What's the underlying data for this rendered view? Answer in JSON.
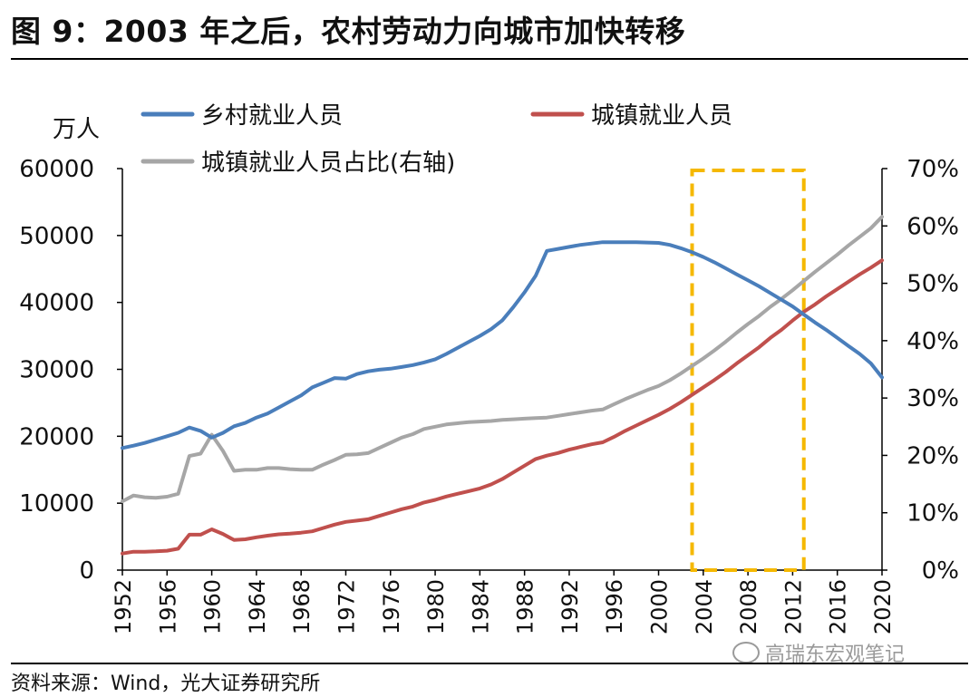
{
  "title": "图 9：2003 年之后，农村劳动力向城市加快转移",
  "source": "资料来源：Wind，光大证券研究所",
  "watermark": "高瑞东宏观笔记",
  "chart_data": {
    "type": "line",
    "ylabel": "万人",
    "ylim": [
      0,
      60000
    ],
    "y_ticks": [
      "0",
      "10000",
      "20000",
      "30000",
      "40000",
      "50000",
      "60000"
    ],
    "y2lim": [
      0,
      70
    ],
    "y2_ticks": [
      "0%",
      "10%",
      "20%",
      "30%",
      "40%",
      "50%",
      "60%",
      "70%"
    ],
    "xlim": [
      1952,
      2020
    ],
    "x_ticks": [
      "1952",
      "1956",
      "1960",
      "1964",
      "1968",
      "1972",
      "1976",
      "1980",
      "1984",
      "1988",
      "1992",
      "1996",
      "2000",
      "2004",
      "2008",
      "2012",
      "2016",
      "2020"
    ],
    "legend_position": "top",
    "highlight_box": {
      "x_from": 2003,
      "x_to": 2013,
      "color": "#F5B800"
    },
    "series": [
      {
        "name": "乡村就业人员",
        "axis": "left",
        "color": "#4A7EBB",
        "x": [
          1952,
          1953,
          1954,
          1955,
          1956,
          1957,
          1958,
          1959,
          1960,
          1961,
          1962,
          1963,
          1964,
          1965,
          1966,
          1967,
          1968,
          1969,
          1970,
          1971,
          1972,
          1973,
          1974,
          1975,
          1976,
          1977,
          1978,
          1979,
          1980,
          1981,
          1982,
          1983,
          1984,
          1985,
          1986,
          1987,
          1988,
          1989,
          1990,
          1991,
          1992,
          1993,
          1994,
          1995,
          1996,
          1997,
          1998,
          1999,
          2000,
          2001,
          2002,
          2003,
          2004,
          2005,
          2006,
          2007,
          2008,
          2009,
          2010,
          2011,
          2012,
          2013,
          2014,
          2015,
          2016,
          2017,
          2018,
          2019,
          2020
        ],
        "values": [
          18240,
          18590,
          19000,
          19500,
          20000,
          20520,
          21300,
          20800,
          19800,
          20500,
          21500,
          22000,
          22800,
          23400,
          24300,
          25200,
          26100,
          27300,
          28000,
          28700,
          28600,
          29300,
          29700,
          29950,
          30100,
          30350,
          30640,
          31030,
          31500,
          32300,
          33200,
          34100,
          35000,
          36000,
          37300,
          39300,
          41500,
          44000,
          47700,
          48000,
          48300,
          48600,
          48800,
          49000,
          49000,
          49000,
          49000,
          48950,
          48900,
          48600,
          48100,
          47500,
          46800,
          46000,
          45100,
          44200,
          43300,
          42400,
          41400,
          40400,
          39400,
          38200,
          37000,
          35900,
          34700,
          33500,
          32300,
          30900,
          28800
        ]
      },
      {
        "name": "城镇就业人员",
        "axis": "left",
        "color": "#C0504D",
        "x": [
          1952,
          1953,
          1954,
          1955,
          1956,
          1957,
          1958,
          1959,
          1960,
          1961,
          1962,
          1963,
          1964,
          1965,
          1966,
          1967,
          1968,
          1969,
          1970,
          1971,
          1972,
          1973,
          1974,
          1975,
          1976,
          1977,
          1978,
          1979,
          1980,
          1981,
          1982,
          1983,
          1984,
          1985,
          1986,
          1987,
          1988,
          1989,
          1990,
          1991,
          1992,
          1993,
          1994,
          1995,
          1996,
          1997,
          1998,
          1999,
          2000,
          2001,
          2002,
          2003,
          2004,
          2005,
          2006,
          2007,
          2008,
          2009,
          2010,
          2011,
          2012,
          2013,
          2014,
          2015,
          2016,
          2017,
          2018,
          2019,
          2020
        ],
        "values": [
          2480,
          2750,
          2750,
          2800,
          2900,
          3200,
          5300,
          5300,
          6100,
          5400,
          4500,
          4600,
          4900,
          5150,
          5350,
          5450,
          5600,
          5800,
          6300,
          6800,
          7200,
          7400,
          7600,
          8100,
          8600,
          9100,
          9500,
          10100,
          10500,
          11000,
          11400,
          11800,
          12200,
          12800,
          13600,
          14600,
          15600,
          16600,
          17100,
          17500,
          18000,
          18400,
          18800,
          19100,
          19900,
          20800,
          21600,
          22400,
          23200,
          24100,
          25100,
          26200,
          27300,
          28400,
          29600,
          30900,
          32100,
          33300,
          34700,
          35900,
          37300,
          38600,
          39700,
          40900,
          42000,
          43100,
          44200,
          45200,
          46300
        ]
      },
      {
        "name": "城镇就业人员占比(右轴)",
        "axis": "right",
        "color": "#A6A6A6",
        "x": [
          1952,
          1953,
          1954,
          1955,
          1956,
          1957,
          1958,
          1959,
          1960,
          1961,
          1962,
          1963,
          1964,
          1965,
          1966,
          1967,
          1968,
          1969,
          1970,
          1971,
          1972,
          1973,
          1974,
          1975,
          1976,
          1977,
          1978,
          1979,
          1980,
          1981,
          1982,
          1983,
          1984,
          1985,
          1986,
          1987,
          1988,
          1989,
          1990,
          1991,
          1992,
          1993,
          1994,
          1995,
          1996,
          1997,
          1998,
          1999,
          2000,
          2001,
          2002,
          2003,
          2004,
          2005,
          2006,
          2007,
          2008,
          2009,
          2010,
          2011,
          2012,
          2013,
          2014,
          2015,
          2016,
          2017,
          2018,
          2019,
          2020
        ],
        "values": [
          12.0,
          13.0,
          12.7,
          12.6,
          12.8,
          13.3,
          19.9,
          20.3,
          23.6,
          20.8,
          17.3,
          17.5,
          17.5,
          17.8,
          17.8,
          17.6,
          17.5,
          17.5,
          18.4,
          19.2,
          20.1,
          20.2,
          20.4,
          21.3,
          22.2,
          23.1,
          23.7,
          24.6,
          25.0,
          25.4,
          25.6,
          25.8,
          25.9,
          26.0,
          26.2,
          26.3,
          26.4,
          26.5,
          26.6,
          26.9,
          27.2,
          27.5,
          27.8,
          28.0,
          28.9,
          29.8,
          30.6,
          31.4,
          32.1,
          33.1,
          34.3,
          35.6,
          36.9,
          38.3,
          39.8,
          41.4,
          42.9,
          44.3,
          45.9,
          47.3,
          48.8,
          50.4,
          52.0,
          53.5,
          55.0,
          56.6,
          58.1,
          59.6,
          61.6
        ]
      }
    ]
  }
}
